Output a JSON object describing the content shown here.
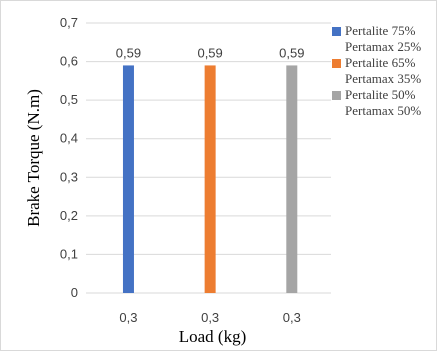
{
  "chart_data": {
    "type": "bar",
    "title": "",
    "xlabel": "Load (kg)",
    "ylabel": "Brake Torque (N.m)",
    "ylim": [
      0,
      0.7
    ],
    "yticks": [
      "0",
      "0,1",
      "0,2",
      "0,3",
      "0,4",
      "0,5",
      "0,6",
      "0,7"
    ],
    "grid": true,
    "legend_position": "right",
    "series": [
      {
        "name": [
          "Pertalite 75%",
          "Pertamax 25%"
        ],
        "category": "0,3",
        "value": 0.59,
        "label": "0,59",
        "color": "#4472c4"
      },
      {
        "name": [
          "Pertalite 65%",
          "Pertamax 35%"
        ],
        "category": "0,3",
        "value": 0.59,
        "label": "0,59",
        "color": "#ed7d31"
      },
      {
        "name": [
          "Pertalite 50%",
          "Pertamax 50%"
        ],
        "category": "0,3",
        "value": 0.59,
        "label": "0,59",
        "color": "#a5a5a5"
      }
    ]
  }
}
